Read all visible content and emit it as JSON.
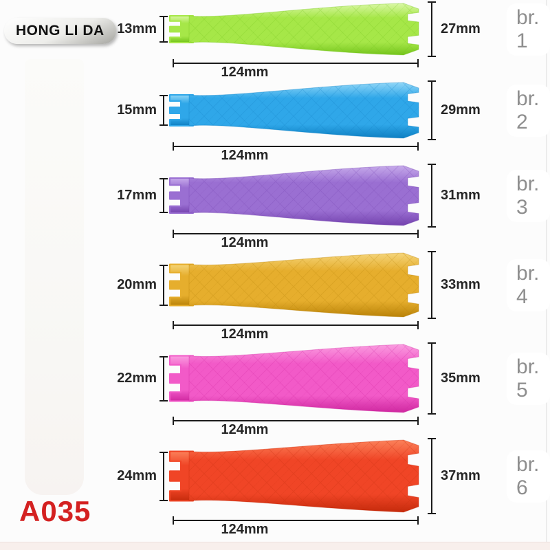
{
  "brand": {
    "label": "HONG LI DA"
  },
  "model": {
    "label": "A035",
    "color": "#d42121"
  },
  "annotation": {
    "line_color": "#1b1b1b",
    "text_color": "#262626",
    "size_name_color": "#8e8e8e"
  },
  "rollers": [
    {
      "name": "br. 1",
      "small": "13mm",
      "large": "27mm",
      "length": "124mm",
      "color": "#a6e748",
      "color_light": "#d9f7a4",
      "color_dark": "#74c41c"
    },
    {
      "name": "br. 2",
      "small": "15mm",
      "large": "29mm",
      "length": "124mm",
      "color": "#2fa7e9",
      "color_light": "#90d6f7",
      "color_dark": "#0e7fc2"
    },
    {
      "name": "br. 3",
      "small": "17mm",
      "large": "31mm",
      "length": "124mm",
      "color": "#9a6fd2",
      "color_light": "#c7abeb",
      "color_dark": "#7442ae"
    },
    {
      "name": "br. 4",
      "small": "20mm",
      "large": "33mm",
      "length": "124mm",
      "color": "#e6ae2d",
      "color_light": "#f5d57a",
      "color_dark": "#b98208"
    },
    {
      "name": "br. 5",
      "small": "22mm",
      "large": "35mm",
      "length": "124mm",
      "color": "#f25ac8",
      "color_light": "#fa9de0",
      "color_dark": "#cf28a0"
    },
    {
      "name": "br. 6",
      "small": "24mm",
      "large": "37mm",
      "length": "124mm",
      "color": "#f04526",
      "color_light": "#fb815a",
      "color_dark": "#c52b0c"
    }
  ]
}
